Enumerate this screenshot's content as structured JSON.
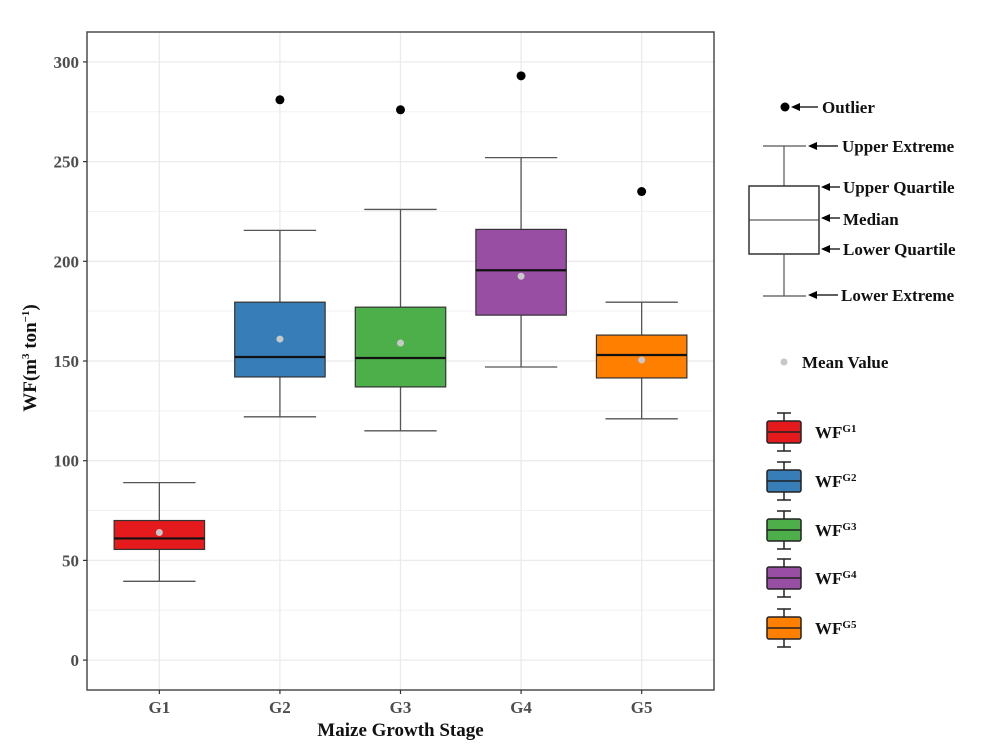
{
  "chart_data": {
    "type": "box",
    "title": "",
    "xlabel": "Maize Growth Stage",
    "ylabel": {
      "base": "WF(m",
      "sup1": "3",
      "mid": " ton",
      "sup2": "−1",
      "end": ")"
    },
    "ylim": [
      -15,
      315
    ],
    "yticks": [
      0,
      50,
      100,
      150,
      200,
      250,
      300
    ],
    "grid": true,
    "categories": [
      "G1",
      "G2",
      "G3",
      "G4",
      "G5"
    ],
    "series": [
      {
        "name": "WF^G1",
        "label": "WF",
        "sup": "G1",
        "color": "#e41a1c",
        "lower_extreme": 39.5,
        "q1": 55.5,
        "median": 61,
        "q3": 70,
        "upper_extreme": 89,
        "mean": 64,
        "outliers": []
      },
      {
        "name": "WF^G2",
        "label": "WF",
        "sup": "G2",
        "color": "#377eb8",
        "lower_extreme": 122,
        "q1": 142,
        "median": 152,
        "q3": 179.5,
        "upper_extreme": 215.5,
        "mean": 161,
        "outliers": [
          281
        ]
      },
      {
        "name": "WF^G3",
        "label": "WF",
        "sup": "G3",
        "color": "#4daf4a",
        "lower_extreme": 115,
        "q1": 137,
        "median": 151.5,
        "q3": 177,
        "upper_extreme": 226,
        "mean": 159,
        "outliers": [
          276
        ]
      },
      {
        "name": "WF^G4",
        "label": "WF",
        "sup": "G4",
        "color": "#984ea3",
        "lower_extreme": 147,
        "q1": 173,
        "median": 195.5,
        "q3": 216,
        "upper_extreme": 252,
        "mean": 192.5,
        "outliers": [
          293
        ]
      },
      {
        "name": "WF^G5",
        "label": "WF",
        "sup": "G5",
        "color": "#ff7f00",
        "lower_extreme": 121,
        "q1": 141.5,
        "median": 153,
        "q3": 163,
        "upper_extreme": 179.5,
        "mean": 150.5,
        "outliers": [
          235
        ]
      }
    ],
    "mean_marker_color": "#c8c8c8",
    "key": {
      "outlier": "Outlier",
      "upper_extreme": "Upper Extreme",
      "upper_quartile": "Upper Quartile",
      "median": "Median",
      "lower_quartile": "Lower Quartile",
      "lower_extreme": "Lower Extreme",
      "mean_value": "Mean Value"
    },
    "legend_position": "right"
  }
}
